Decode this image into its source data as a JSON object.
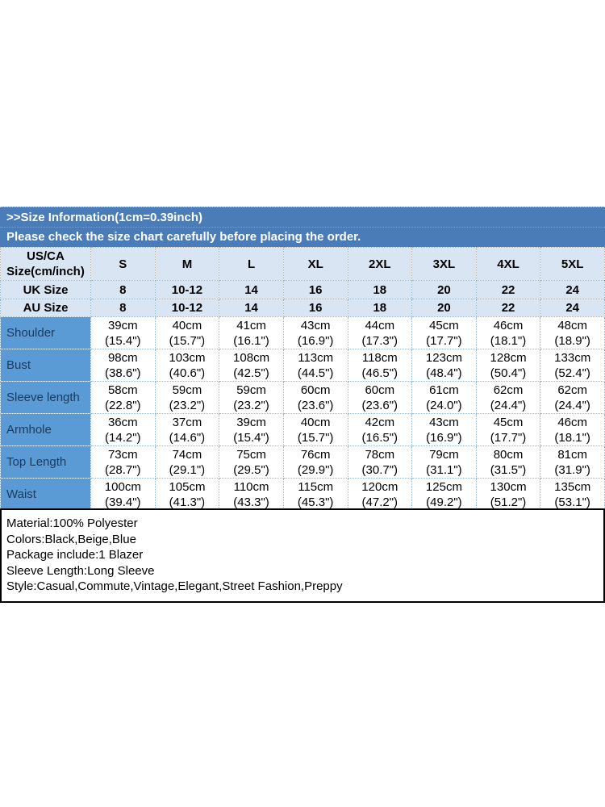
{
  "header": {
    "title": ">>Size Information(1cm=0.39inch)",
    "subtitle": "Please check the size chart carefully before placing the order."
  },
  "table": {
    "corner_line1": "US/CA",
    "corner_line2": "Size(cm/inch)",
    "size_columns": [
      "S",
      "M",
      "L",
      "XL",
      "2XL",
      "3XL",
      "4XL",
      "5XL"
    ],
    "size_rows": [
      {
        "label": "UK Size",
        "values": [
          "8",
          "10-12",
          "14",
          "16",
          "18",
          "20",
          "22",
          "24"
        ]
      },
      {
        "label": "AU Size",
        "values": [
          "8",
          "10-12",
          "14",
          "16",
          "18",
          "20",
          "22",
          "24"
        ]
      }
    ],
    "measurement_rows": [
      {
        "label": "Shoulder",
        "cm": [
          "39cm",
          "40cm",
          "41cm",
          "43cm",
          "44cm",
          "45cm",
          "46cm",
          "48cm"
        ],
        "inch": [
          "(15.4\")",
          "(15.7\")",
          "(16.1\")",
          "(16.9\")",
          "(17.3\")",
          "(17.7\")",
          "(18.1\")",
          "(18.9\")"
        ]
      },
      {
        "label": "Bust",
        "cm": [
          "98cm",
          "103cm",
          "108cm",
          "113cm",
          "118cm",
          "123cm",
          "128cm",
          "133cm"
        ],
        "inch": [
          "(38.6\")",
          "(40.6\")",
          "(42.5\")",
          "(44.5\")",
          "(46.5\")",
          "(48.4\")",
          "(50.4\")",
          "(52.4\")"
        ]
      },
      {
        "label": "Sleeve length",
        "cm": [
          "58cm",
          "59cm",
          "59cm",
          "60cm",
          "60cm",
          "61cm",
          "62cm",
          "62cm"
        ],
        "inch": [
          "(22.8\")",
          "(23.2\")",
          "(23.2\")",
          "(23.6\")",
          "(23.6\")",
          "(24.0\")",
          "(24.4\")",
          "(24.4\")"
        ]
      },
      {
        "label": "Armhole",
        "cm": [
          "36cm",
          "37cm",
          "39cm",
          "40cm",
          "42cm",
          "43cm",
          "45cm",
          "46cm"
        ],
        "inch": [
          "(14.2\")",
          "(14.6\")",
          "(15.4\")",
          "(15.7\")",
          "(16.5\")",
          "(16.9\")",
          "(17.7\")",
          "(18.1\")"
        ]
      },
      {
        "label": "Top Length",
        "cm": [
          "73cm",
          "74cm",
          "75cm",
          "76cm",
          "78cm",
          "79cm",
          "80cm",
          "81cm"
        ],
        "inch": [
          "(28.7\")",
          "(29.1\")",
          "(29.5\")",
          "(29.9\")",
          "(30.7\")",
          "(31.1\")",
          "(31.5\")",
          "(31.9\")"
        ]
      },
      {
        "label": "Waist",
        "cm": [
          "100cm",
          "105cm",
          "110cm",
          "115cm",
          "120cm",
          "125cm",
          "130cm",
          "135cm"
        ],
        "inch": [
          "(39.4\")",
          "(41.3\")",
          "(43.3\")",
          "(45.3\")",
          "(47.2\")",
          "(49.2\")",
          "(51.2\")",
          "(53.1\")"
        ]
      }
    ]
  },
  "details": {
    "lines": [
      "Material:100% Polyester",
      "Colors:Black,Beige,Blue",
      "Package include:1 Blazer",
      "Sleeve Length:Long Sleeve",
      "Style:Casual,Commute,Vintage,Elegant,Street Fashion,Preppy"
    ]
  },
  "colors": {
    "title_band": "#4a7cb8",
    "header_row_bg": "#d9e5f2",
    "label_column_bg": "#5b9bd5",
    "label_text": "#1c3a5e",
    "grid_border": "#9db3c8",
    "details_border": "#000000"
  }
}
